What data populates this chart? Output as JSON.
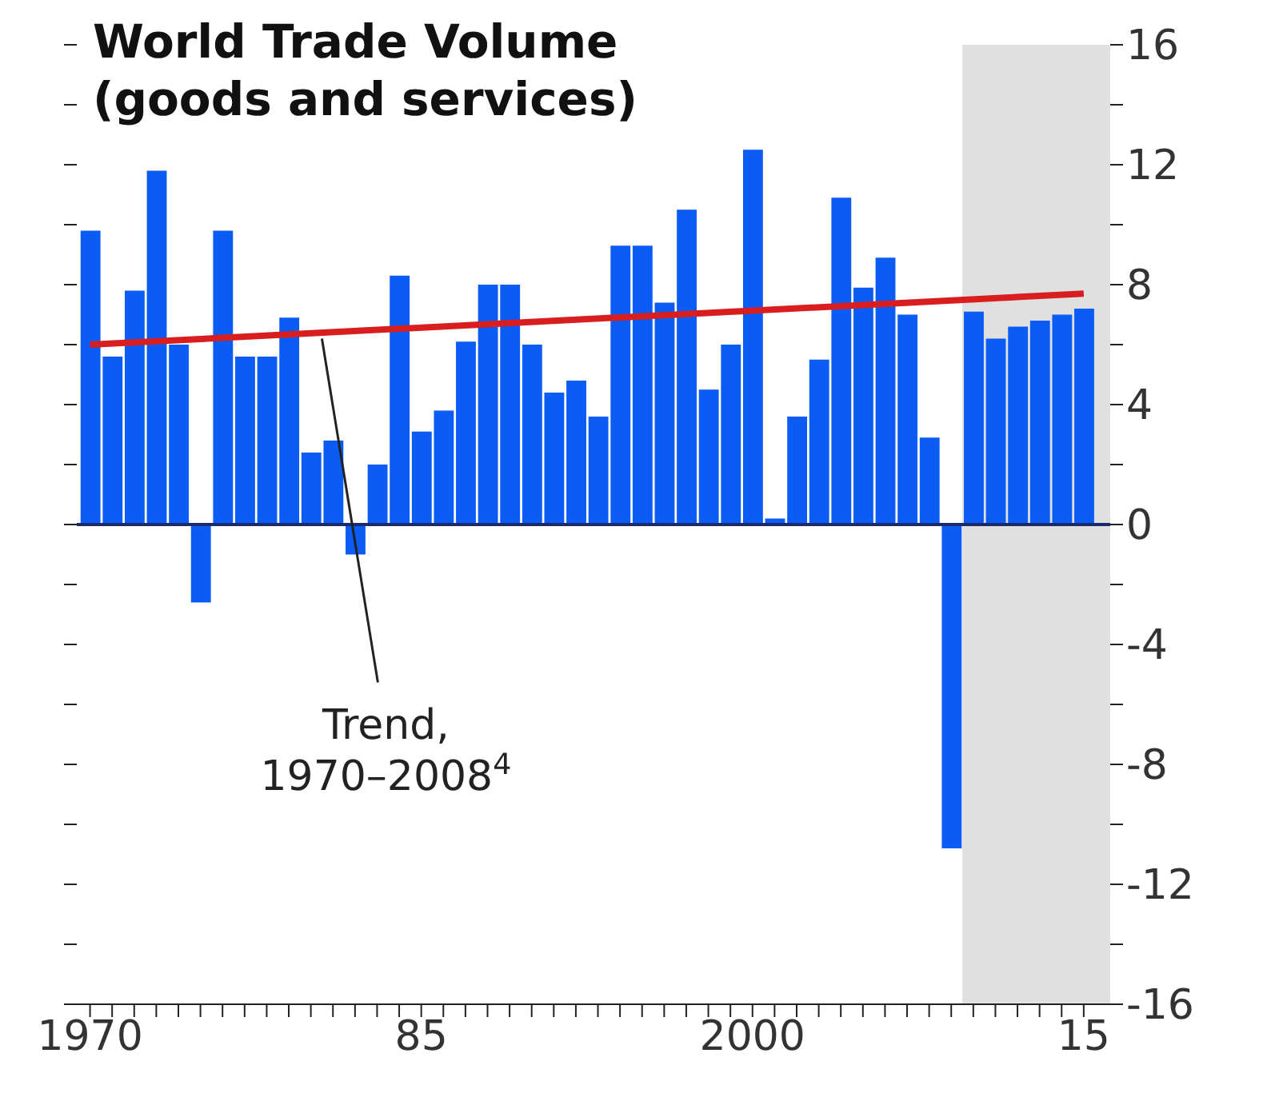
{
  "chart_data": {
    "type": "bar",
    "title": "World Trade Volume",
    "subtitle": "(goods and services)",
    "x": [
      1970,
      1971,
      1972,
      1973,
      1974,
      1975,
      1976,
      1977,
      1978,
      1979,
      1980,
      1981,
      1982,
      1983,
      1984,
      1985,
      1986,
      1987,
      1988,
      1989,
      1990,
      1991,
      1992,
      1993,
      1994,
      1995,
      1996,
      1997,
      1998,
      1999,
      2000,
      2001,
      2002,
      2003,
      2004,
      2005,
      2006,
      2007,
      2008,
      2009,
      2010,
      2011,
      2012,
      2013,
      2014,
      2015
    ],
    "series": [
      {
        "color": "#0b5cf5",
        "values": [
          9.8,
          5.6,
          7.8,
          11.8,
          6.0,
          -2.6,
          9.8,
          5.6,
          5.6,
          6.9,
          2.4,
          2.8,
          -1.0,
          2.0,
          8.3,
          3.1,
          3.8,
          6.1,
          8.0,
          8.0,
          6.0,
          4.4,
          4.8,
          3.6,
          9.3,
          9.3,
          7.4,
          10.5,
          4.5,
          6.0,
          12.5,
          0.2,
          3.6,
          5.5,
          10.9,
          7.9,
          8.9,
          7.0,
          2.9,
          -10.8,
          7.1,
          6.2,
          6.6,
          6.8,
          7.0,
          7.2
        ]
      },
      {
        "type": "line",
        "color": "#d81e1e",
        "x": [
          1970,
          2015
        ],
        "values": [
          6.0,
          7.7
        ]
      }
    ],
    "xlim": [
      1969.4,
      2016.2
    ],
    "xticks": [
      {
        "value": 1970,
        "label": "1970"
      },
      {
        "value": 1971,
        "label": null
      },
      {
        "value": 1972,
        "label": null
      },
      {
        "value": 1973,
        "label": null
      },
      {
        "value": 1974,
        "label": null
      },
      {
        "value": 1975,
        "label": null
      },
      {
        "value": 1976,
        "label": null
      },
      {
        "value": 1977,
        "label": null
      },
      {
        "value": 1978,
        "label": null
      },
      {
        "value": 1979,
        "label": null
      },
      {
        "value": 1980,
        "label": null
      },
      {
        "value": 1981,
        "label": null
      },
      {
        "value": 1982,
        "label": null
      },
      {
        "value": 1983,
        "label": null
      },
      {
        "value": 1984,
        "label": null
      },
      {
        "value": 1985,
        "label": "85"
      },
      {
        "value": 1986,
        "label": null
      },
      {
        "value": 1987,
        "label": null
      },
      {
        "value": 1988,
        "label": null
      },
      {
        "value": 1989,
        "label": null
      },
      {
        "value": 1990,
        "label": null
      },
      {
        "value": 1991,
        "label": null
      },
      {
        "value": 1992,
        "label": null
      },
      {
        "value": 1993,
        "label": null
      },
      {
        "value": 1994,
        "label": null
      },
      {
        "value": 1995,
        "label": null
      },
      {
        "value": 1996,
        "label": null
      },
      {
        "value": 1997,
        "label": null
      },
      {
        "value": 1998,
        "label": null
      },
      {
        "value": 1999,
        "label": null
      },
      {
        "value": 2000,
        "label": "2000"
      },
      {
        "value": 2001,
        "label": null
      },
      {
        "value": 2002,
        "label": null
      },
      {
        "value": 2003,
        "label": null
      },
      {
        "value": 2004,
        "label": null
      },
      {
        "value": 2005,
        "label": null
      },
      {
        "value": 2006,
        "label": null
      },
      {
        "value": 2007,
        "label": null
      },
      {
        "value": 2008,
        "label": null
      },
      {
        "value": 2009,
        "label": null
      },
      {
        "value": 2010,
        "label": null
      },
      {
        "value": 2011,
        "label": null
      },
      {
        "value": 2012,
        "label": null
      },
      {
        "value": 2013,
        "label": null
      },
      {
        "value": 2014,
        "label": null
      },
      {
        "value": 2015,
        "label": "15"
      }
    ],
    "ylim": [
      -16,
      16
    ],
    "yticks": [
      -16,
      {
        "value": -14,
        "label": null
      },
      -12,
      {
        "value": -10,
        "label": null
      },
      -8,
      {
        "value": -6,
        "label": null
      },
      -4,
      {
        "value": -2,
        "label": null
      },
      0,
      {
        "value": 2,
        "label": null
      },
      4,
      {
        "value": 6,
        "label": null
      },
      8,
      {
        "value": 10,
        "label": null
      },
      12,
      {
        "value": 14,
        "label": null
      },
      16
    ],
    "bands": [
      {
        "axis": "x",
        "from": 2009.5,
        "to": 2016.2,
        "color": "#e0e0e0"
      }
    ],
    "ref_lines": [
      {
        "axis": "y",
        "value": 0,
        "color": "#1a2a6c"
      }
    ],
    "annotations": [
      {
        "text": "Trend,\n1970–2008$^{4}$",
        "x": 1980.5,
        "y": 6.2
      }
    ]
  }
}
